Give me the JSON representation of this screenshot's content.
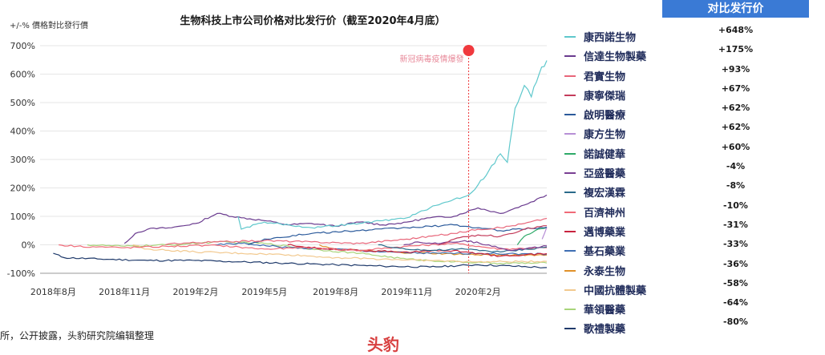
{
  "chart_data": {
    "type": "line",
    "title": "生物科技上市公司价格对比发行价（截至2020年4月底）",
    "ylabel": "+/-% 價格對比發行價",
    "yticks": [
      "700%",
      "600%",
      "500%",
      "400%",
      "300%",
      "200%",
      "100%",
      "0%",
      "-100%"
    ],
    "ylim": [
      -100,
      700
    ],
    "xticks": [
      "2018年8月",
      "2018年11月",
      "2019年2月",
      "2019年5月",
      "2019年8月",
      "2019年11月",
      "2020年2月"
    ],
    "xlim": [
      "2018-07-15",
      "2020-04-30"
    ],
    "annotation": {
      "label": "新冠病毒疫情爆發",
      "date": "2020-01-20",
      "color": "#f0393d"
    },
    "series": [
      {
        "name": "康西諾生物",
        "color": "#5fc8cc",
        "points": [
          [
            "2019-03-28",
            100
          ],
          [
            "2019-04-01",
            55
          ],
          [
            "2019-05-01",
            80
          ],
          [
            "2019-07-01",
            60
          ],
          [
            "2019-09-01",
            75
          ],
          [
            "2019-10-01",
            85
          ],
          [
            "2019-11-01",
            95
          ],
          [
            "2019-12-01",
            130
          ],
          [
            "2020-01-01",
            160
          ],
          [
            "2020-01-20",
            175
          ],
          [
            "2020-02-01",
            210
          ],
          [
            "2020-02-15",
            260
          ],
          [
            "2020-03-01",
            320
          ],
          [
            "2020-03-10",
            290
          ],
          [
            "2020-03-20",
            480
          ],
          [
            "2020-04-01",
            560
          ],
          [
            "2020-04-10",
            520
          ],
          [
            "2020-04-20",
            600
          ],
          [
            "2020-04-30",
            648
          ]
        ]
      },
      {
        "name": "信達生物製藥",
        "color": "#6a3b8f",
        "points": [
          [
            "2018-11-01",
            5
          ],
          [
            "2018-11-15",
            40
          ],
          [
            "2018-12-01",
            55
          ],
          [
            "2019-01-01",
            60
          ],
          [
            "2019-02-01",
            75
          ],
          [
            "2019-03-01",
            110
          ],
          [
            "2019-04-01",
            95
          ],
          [
            "2019-05-01",
            85
          ],
          [
            "2019-06-01",
            70
          ],
          [
            "2019-07-01",
            75
          ],
          [
            "2019-08-01",
            65
          ],
          [
            "2019-09-01",
            80
          ],
          [
            "2019-10-01",
            70
          ],
          [
            "2019-11-01",
            80
          ],
          [
            "2019-12-01",
            95
          ],
          [
            "2020-01-01",
            100
          ],
          [
            "2020-02-01",
            130
          ],
          [
            "2020-03-01",
            110
          ],
          [
            "2020-04-01",
            140
          ],
          [
            "2020-04-30",
            175
          ]
        ]
      },
      {
        "name": "君實生物",
        "color": "#e8667a",
        "points": [
          [
            "2018-12-24",
            0
          ],
          [
            "2019-01-01",
            5
          ],
          [
            "2019-03-01",
            10
          ],
          [
            "2019-05-01",
            15
          ],
          [
            "2019-07-01",
            10
          ],
          [
            "2019-09-01",
            5
          ],
          [
            "2019-11-01",
            20
          ],
          [
            "2020-01-01",
            40
          ],
          [
            "2020-02-01",
            55
          ],
          [
            "2020-03-01",
            60
          ],
          [
            "2020-04-01",
            75
          ],
          [
            "2020-04-30",
            93
          ]
        ]
      },
      {
        "name": "康寧傑瑞",
        "color": "#c43c5b",
        "points": [
          [
            "2019-12-12",
            0
          ],
          [
            "2020-01-01",
            20
          ],
          [
            "2020-02-01",
            35
          ],
          [
            "2020-03-01",
            30
          ],
          [
            "2020-04-01",
            55
          ],
          [
            "2020-04-30",
            67
          ]
        ]
      },
      {
        "name": "啟明醫療",
        "color": "#2b5a9b",
        "points": [
          [
            "2019-04-10",
            0
          ],
          [
            "2019-05-01",
            20
          ],
          [
            "2019-07-01",
            40
          ],
          [
            "2019-09-01",
            50
          ],
          [
            "2019-11-01",
            60
          ],
          [
            "2020-01-01",
            70
          ],
          [
            "2020-03-01",
            50
          ],
          [
            "2020-04-30",
            62
          ]
        ]
      },
      {
        "name": "康方生物",
        "color": "#b78fd6",
        "points": [
          [
            "2020-04-24",
            20
          ],
          [
            "2020-04-30",
            62
          ]
        ]
      },
      {
        "name": "諾誠健華",
        "color": "#2eaa69",
        "points": [
          [
            "2020-03-23",
            0
          ],
          [
            "2020-04-01",
            30
          ],
          [
            "2020-04-15",
            50
          ],
          [
            "2020-04-30",
            60
          ]
        ]
      },
      {
        "name": "亞盛醫藥",
        "color": "#7a3f93",
        "points": [
          [
            "2019-10-28",
            0
          ],
          [
            "2019-11-15",
            10
          ],
          [
            "2019-12-15",
            5
          ],
          [
            "2020-01-15",
            15
          ],
          [
            "2020-02-15",
            0
          ],
          [
            "2020-03-15",
            -20
          ],
          [
            "2020-04-30",
            -4
          ]
        ]
      },
      {
        "name": "複宏漢霖",
        "color": "#2a6a8a",
        "points": [
          [
            "2019-09-25",
            0
          ],
          [
            "2019-10-15",
            -10
          ],
          [
            "2019-12-01",
            -20
          ],
          [
            "2020-01-15",
            -15
          ],
          [
            "2020-03-01",
            -25
          ],
          [
            "2020-04-30",
            -8
          ]
        ]
      },
      {
        "name": "百濟神州",
        "color": "#f06a78",
        "points": [
          [
            "2018-08-08",
            0
          ],
          [
            "2018-09-01",
            -5
          ],
          [
            "2018-11-01",
            -10
          ],
          [
            "2019-01-01",
            -5
          ],
          [
            "2019-03-01",
            -2
          ],
          [
            "2019-05-01",
            -15
          ],
          [
            "2019-07-01",
            -10
          ],
          [
            "2019-09-01",
            -20
          ],
          [
            "2019-11-01",
            -5
          ],
          [
            "2020-01-01",
            5
          ],
          [
            "2020-03-01",
            -15
          ],
          [
            "2020-04-30",
            -10
          ]
        ]
      },
      {
        "name": "邁博藥業",
        "color": "#c8233e",
        "points": [
          [
            "2019-05-31",
            0
          ],
          [
            "2019-07-01",
            -10
          ],
          [
            "2019-09-01",
            -20
          ],
          [
            "2019-11-01",
            -25
          ],
          [
            "2020-01-01",
            -20
          ],
          [
            "2020-03-01",
            -40
          ],
          [
            "2020-04-30",
            -31
          ]
        ]
      },
      {
        "name": "基石藥業",
        "color": "#3f6fb3",
        "points": [
          [
            "2019-02-26",
            0
          ],
          [
            "2019-04-01",
            5
          ],
          [
            "2019-06-01",
            -10
          ],
          [
            "2019-08-01",
            -15
          ],
          [
            "2019-10-01",
            -25
          ],
          [
            "2019-12-01",
            -30
          ],
          [
            "2020-02-01",
            -30
          ],
          [
            "2020-04-30",
            -33
          ]
        ]
      },
      {
        "name": "永泰生物",
        "color": "#e0912a",
        "points": [
          [
            "2019-07-11",
            0
          ],
          [
            "2019-08-01",
            -15
          ],
          [
            "2019-10-01",
            -25
          ],
          [
            "2019-12-01",
            -30
          ],
          [
            "2020-02-01",
            -35
          ],
          [
            "2020-04-30",
            -36
          ]
        ]
      },
      {
        "name": "中國抗體製藥",
        "color": "#f2c98f",
        "points": [
          [
            "2018-11-12",
            0
          ],
          [
            "2018-12-01",
            -15
          ],
          [
            "2019-02-01",
            -25
          ],
          [
            "2019-04-01",
            -30
          ],
          [
            "2019-06-01",
            -35
          ],
          [
            "2019-08-01",
            -45
          ],
          [
            "2019-10-01",
            -50
          ],
          [
            "2019-12-01",
            -55
          ],
          [
            "2020-02-01",
            -60
          ],
          [
            "2020-04-30",
            -58
          ]
        ]
      },
      {
        "name": "華領醫藥",
        "color": "#a8d47a",
        "points": [
          [
            "2018-09-14",
            0
          ],
          [
            "2018-11-01",
            -5
          ],
          [
            "2019-01-01",
            0
          ],
          [
            "2019-03-01",
            10
          ],
          [
            "2019-05-01",
            5
          ],
          [
            "2019-07-01",
            -15
          ],
          [
            "2019-09-01",
            -30
          ],
          [
            "2019-11-01",
            -50
          ],
          [
            "2020-01-01",
            -60
          ],
          [
            "2020-03-01",
            -65
          ],
          [
            "2020-04-30",
            -64
          ]
        ]
      },
      {
        "name": "歌禮製藥",
        "color": "#1f3a6b",
        "points": [
          [
            "2018-08-01",
            -30
          ],
          [
            "2018-08-15",
            -45
          ],
          [
            "2018-10-01",
            -50
          ],
          [
            "2018-12-01",
            -55
          ],
          [
            "2019-02-01",
            -55
          ],
          [
            "2019-04-01",
            -60
          ],
          [
            "2019-06-01",
            -65
          ],
          [
            "2019-08-01",
            -70
          ],
          [
            "2019-10-01",
            -75
          ],
          [
            "2019-12-01",
            -78
          ],
          [
            "2020-02-01",
            -70
          ],
          [
            "2020-04-30",
            -80
          ]
        ]
      }
    ]
  },
  "performance_table": {
    "header": "对比发行价",
    "values": [
      "+648%",
      "+175%",
      "+93%",
      "+67%",
      "+62%",
      "+62%",
      "+60%",
      "-4%",
      "-8%",
      "-10%",
      "-31%",
      "-33%",
      "-36%",
      "-58%",
      "-64%",
      "-80%"
    ]
  },
  "source_text": "所，公开披露，头豹研究院编辑整理",
  "watermark_text": "头豹"
}
